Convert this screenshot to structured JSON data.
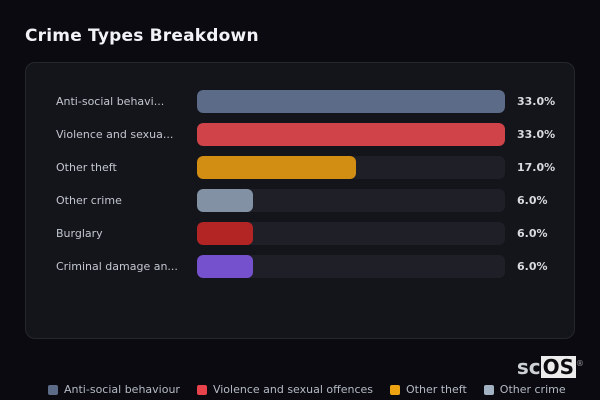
{
  "page": {
    "title": "Crime Types Breakdown",
    "background": "#0a0a10",
    "panel_background": "#14141b",
    "panel_border": "#26262f",
    "track_color": "#1f1f27"
  },
  "chart_data": {
    "type": "bar",
    "orientation": "horizontal",
    "title": "Crime Types Breakdown",
    "unit": "%",
    "axis_max": 33.0,
    "grid": false,
    "legend_position": "bottom",
    "categories": [
      "Anti-social behavi...",
      "Violence and sexua...",
      "Other theft",
      "Other crime",
      "Burglary",
      "Criminal damage an..."
    ],
    "values": [
      33.0,
      33.0,
      17.0,
      6.0,
      6.0,
      6.0
    ],
    "rows": [
      {
        "label": "Anti-social behavi...",
        "value": 33.0,
        "value_label": "33.0%",
        "color": "#5c6b87"
      },
      {
        "label": "Violence and sexua...",
        "value": 33.0,
        "value_label": "33.0%",
        "color": "#cf4349"
      },
      {
        "label": "Other theft",
        "value": 17.0,
        "value_label": "17.0%",
        "color": "#d28d13"
      },
      {
        "label": "Other crime",
        "value": 6.0,
        "value_label": "6.0%",
        "color": "#8292a4"
      },
      {
        "label": "Burglary",
        "value": 6.0,
        "value_label": "6.0%",
        "color": "#b32424"
      },
      {
        "label": "Criminal damage an...",
        "value": 6.0,
        "value_label": "6.0%",
        "color": "#7651cd"
      }
    ],
    "legend": [
      {
        "label": "Anti-social behaviour",
        "color": "#5c6b87"
      },
      {
        "label": "Violence and sexual offences",
        "color": "#e8434b"
      },
      {
        "label": "Other theft",
        "color": "#eda211"
      },
      {
        "label": "Other crime",
        "color": "#a2b2c2"
      }
    ]
  },
  "branding": {
    "logo_prefix": "sc",
    "logo_boxed": "OS",
    "registered_mark": "®"
  }
}
